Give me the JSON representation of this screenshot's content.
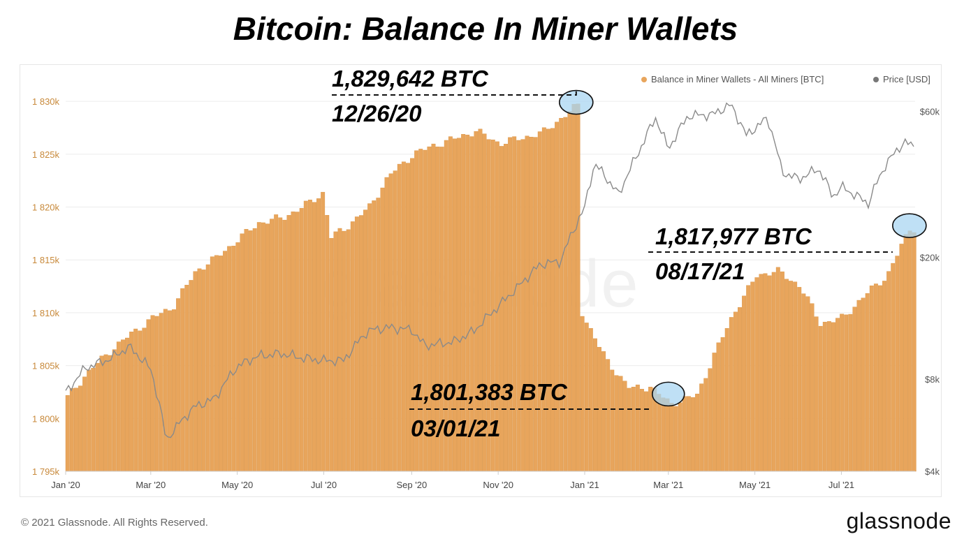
{
  "title": "Bitcoin: Balance In Miner Wallets",
  "legend": {
    "balance_label": "Balance in Miner Wallets - All Miners [BTC]",
    "price_label": "Price [USD]"
  },
  "watermark": "glassnode",
  "footer": {
    "copyright": "© 2021 Glassnode. All Rights Reserved.",
    "logo": "glassnode"
  },
  "annotations": [
    {
      "value": "1,829,642 BTC",
      "date": "12/26/20"
    },
    {
      "value": "1,817,977 BTC",
      "date": "08/17/21"
    },
    {
      "value": "1,801,383 BTC",
      "date": "03/01/21"
    }
  ],
  "colors": {
    "bar": "#E8A55C",
    "price_line": "#8a8a8a",
    "highlight": "#a9d6f2",
    "left_axis_text": "#c8893a"
  },
  "chart_data": {
    "type": "bar",
    "x_ticks": [
      "Jan '20",
      "Mar '20",
      "May '20",
      "Jul '20",
      "Sep '20",
      "Nov '20",
      "Jan '21",
      "Mar '21",
      "May '21",
      "Jul '21"
    ],
    "y_left": {
      "ticks": [
        "1 795k",
        "1 800k",
        "1 805k",
        "1 810k",
        "1 815k",
        "1 820k",
        "1 825k",
        "1 830k"
      ],
      "range": [
        1795000,
        1831000
      ],
      "scale": "linear"
    },
    "y_right": {
      "ticks": [
        "$4k",
        "$8k",
        "$20k",
        "$60k"
      ],
      "range": [
        4000,
        70000
      ],
      "scale": "log"
    },
    "grid": true,
    "legend_position": "top-right",
    "series": [
      {
        "name": "Balance in Miner Wallets - All Miners [BTC]",
        "kind": "bar",
        "points": [
          [
            "2020-01-01",
            1802000
          ],
          [
            "2020-01-15",
            1804300
          ],
          [
            "2020-02-01",
            1806500
          ],
          [
            "2020-02-15",
            1808000
          ],
          [
            "2020-03-01",
            1809500
          ],
          [
            "2020-03-15",
            1810500
          ],
          [
            "2020-04-01",
            1814000
          ],
          [
            "2020-04-15",
            1815200
          ],
          [
            "2020-05-01",
            1817000
          ],
          [
            "2020-05-15",
            1818500
          ],
          [
            "2020-06-01",
            1819000
          ],
          [
            "2020-06-15",
            1820000
          ],
          [
            "2020-07-01",
            1821500
          ],
          [
            "2020-07-03",
            1817000
          ],
          [
            "2020-07-15",
            1818000
          ],
          [
            "2020-08-01",
            1820000
          ],
          [
            "2020-08-15",
            1823000
          ],
          [
            "2020-09-01",
            1825000
          ],
          [
            "2020-09-15",
            1825800
          ],
          [
            "2020-10-01",
            1826500
          ],
          [
            "2020-10-15",
            1827200
          ],
          [
            "2020-11-01",
            1826000
          ],
          [
            "2020-11-15",
            1826500
          ],
          [
            "2020-12-01",
            1827000
          ],
          [
            "2020-12-26",
            1829642
          ],
          [
            "2020-12-29",
            1810000
          ],
          [
            "2021-01-15",
            1805500
          ],
          [
            "2021-02-01",
            1802800
          ],
          [
            "2021-02-15",
            1803000
          ],
          [
            "2021-03-01",
            1801383
          ],
          [
            "2021-03-20",
            1802200
          ],
          [
            "2021-04-01",
            1806000
          ],
          [
            "2021-04-15",
            1810000
          ],
          [
            "2021-05-01",
            1813500
          ],
          [
            "2021-05-15",
            1814000
          ],
          [
            "2021-06-01",
            1812500
          ],
          [
            "2021-06-15",
            1809000
          ],
          [
            "2021-07-01",
            1809500
          ],
          [
            "2021-07-15",
            1811500
          ],
          [
            "2021-08-01",
            1813500
          ],
          [
            "2021-08-17",
            1817977
          ]
        ]
      },
      {
        "name": "Price [USD]",
        "kind": "line",
        "axis": "right",
        "points": [
          [
            "2020-01-01",
            7200
          ],
          [
            "2020-01-15",
            8700
          ],
          [
            "2020-02-01",
            9300
          ],
          [
            "2020-02-15",
            10200
          ],
          [
            "2020-03-01",
            8600
          ],
          [
            "2020-03-12",
            5000
          ],
          [
            "2020-03-15",
            5300
          ],
          [
            "2020-04-01",
            6500
          ],
          [
            "2020-04-15",
            6900
          ],
          [
            "2020-05-01",
            8800
          ],
          [
            "2020-05-15",
            9500
          ],
          [
            "2020-06-01",
            9700
          ],
          [
            "2020-06-15",
            9400
          ],
          [
            "2020-07-01",
            9200
          ],
          [
            "2020-07-15",
            9200
          ],
          [
            "2020-08-01",
            11500
          ],
          [
            "2020-08-15",
            11800
          ],
          [
            "2020-09-01",
            11600
          ],
          [
            "2020-09-10",
            10300
          ],
          [
            "2020-10-01",
            10600
          ],
          [
            "2020-10-15",
            11500
          ],
          [
            "2020-11-01",
            13800
          ],
          [
            "2020-11-15",
            16000
          ],
          [
            "2020-12-01",
            19000
          ],
          [
            "2020-12-15",
            19400
          ],
          [
            "2021-01-01",
            29000
          ],
          [
            "2021-01-08",
            40500
          ],
          [
            "2021-01-25",
            32000
          ],
          [
            "2021-02-08",
            44000
          ],
          [
            "2021-02-20",
            57000
          ],
          [
            "2021-03-01",
            45000
          ],
          [
            "2021-03-15",
            58000
          ],
          [
            "2021-04-01",
            58500
          ],
          [
            "2021-04-14",
            63000
          ],
          [
            "2021-04-25",
            50000
          ],
          [
            "2021-05-10",
            57000
          ],
          [
            "2021-05-20",
            38000
          ],
          [
            "2021-06-01",
            36000
          ],
          [
            "2021-06-15",
            39000
          ],
          [
            "2021-06-25",
            31500
          ],
          [
            "2021-07-01",
            34000
          ],
          [
            "2021-07-20",
            30000
          ],
          [
            "2021-08-01",
            40000
          ],
          [
            "2021-08-14",
            47500
          ],
          [
            "2021-08-22",
            46000
          ]
        ]
      }
    ]
  }
}
